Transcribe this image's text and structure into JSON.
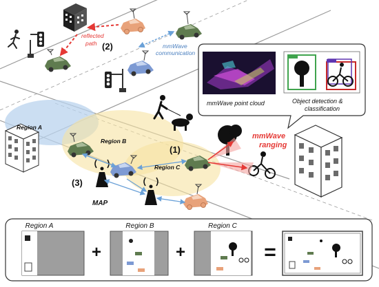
{
  "scene": {
    "marker_1": "(1)",
    "marker_2": "(2)",
    "marker_3": "(3)",
    "reflected_path": [
      "reflected",
      "path"
    ],
    "mmwave_communication": [
      "mmWave",
      "communication"
    ],
    "mmwave_ranging": [
      "mmWave",
      "ranging"
    ],
    "map_label": "MAP",
    "region_a": "Region A",
    "region_b": "Region B",
    "region_c": "Region C"
  },
  "bubble": {
    "point_cloud_caption": "mmWave point cloud",
    "detection_caption": [
      "Object detection &",
      "classification"
    ]
  },
  "bottom_panel": {
    "region_a": "Region A",
    "region_b": "Region B",
    "region_c": "Region C",
    "plus": "+",
    "equals": "="
  },
  "colors": {
    "road_line": "#9a9a9a",
    "car_green": "#5f7b4f",
    "car_blue": "#7d9ad3",
    "car_orange": "#e8a27a",
    "region_a_fill": "#b9d3ee",
    "region_bc_fill": "#f6e3a2",
    "ranging_red": "#e53935",
    "comm_blue": "#6aa1d8"
  }
}
